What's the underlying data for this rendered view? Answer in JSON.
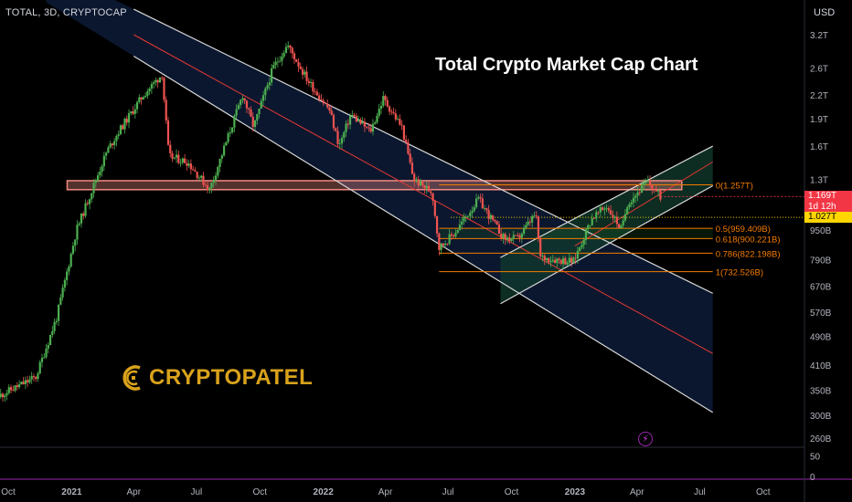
{
  "header": {
    "symbol": "TOTAL, 3D, CRYPTOCAP",
    "currency": "USD"
  },
  "title": "Total Crypto Market Cap Chart",
  "watermark": {
    "text": "CRYPTOPATEL",
    "icon": "cryptopatel-c-logo-icon"
  },
  "live_icon": "lightning-icon",
  "colors": {
    "background": "#000000",
    "bull": "#26a69a",
    "bull_green": "#4caf50",
    "bear": "#ef5350",
    "fib": "#f57c00",
    "channel_line": "#d8d8d8",
    "midline": "#e53935",
    "resistance_zone": "#f28b82",
    "accent_yellow": "#ffd600"
  },
  "price_tags": [
    {
      "label": "1.169T",
      "bg": "#f23645",
      "color": "#ffffff",
      "value": 1.169
    },
    {
      "label": "1d 12h",
      "bg": "#f23645",
      "color": "#ffffff",
      "value": 1.12
    },
    {
      "label": "1.027T",
      "bg": "#ffd600",
      "color": "#000000",
      "value": 1.027
    }
  ],
  "chart_data": {
    "type": "candlestick",
    "title": "Total Crypto Market Cap Chart",
    "symbol": "TOTAL",
    "interval": "3D",
    "y_scale": "log",
    "y_unit": "USD",
    "y_ticks": [
      "3.2T",
      "2.6T",
      "2.2T",
      "1.9T",
      "1.6T",
      "1.3T",
      "950B",
      "790B",
      "670B",
      "570B",
      "490B",
      "410B",
      "350B",
      "300B",
      "260B"
    ],
    "y_tick_values": [
      3.2,
      2.6,
      2.2,
      1.9,
      1.6,
      1.3,
      0.95,
      0.79,
      0.67,
      0.57,
      0.49,
      0.41,
      0.35,
      0.3,
      0.26
    ],
    "x_ticks": [
      "Oct",
      "2021",
      "Apr",
      "Jul",
      "Oct",
      "2022",
      "Apr",
      "Jul",
      "Oct",
      "2023",
      "Apr",
      "Jul",
      "Oct"
    ],
    "x_tick_dates": [
      "2020-10-01",
      "2021-01-01",
      "2021-04-01",
      "2021-07-01",
      "2021-10-01",
      "2022-01-01",
      "2022-04-01",
      "2022-07-01",
      "2022-10-01",
      "2023-01-01",
      "2023-04-01",
      "2023-07-01",
      "2023-10-01"
    ],
    "last_price": "1.169T",
    "countdown": "1d 12h",
    "marker_price": "1.027T",
    "volume_ticks": [
      "50",
      "0"
    ],
    "volume_tick_values": [
      50,
      0
    ],
    "path_points": [
      {
        "date": "2020-09-20",
        "value": 0.34
      },
      {
        "date": "2020-11-10",
        "value": 0.38
      },
      {
        "date": "2020-12-10",
        "value": 0.55
      },
      {
        "date": "2021-01-08",
        "value": 0.95
      },
      {
        "date": "2021-02-21",
        "value": 1.55
      },
      {
        "date": "2021-03-10",
        "value": 1.75
      },
      {
        "date": "2021-04-15",
        "value": 2.2
      },
      {
        "date": "2021-05-12",
        "value": 2.5
      },
      {
        "date": "2021-05-22",
        "value": 1.5
      },
      {
        "date": "2021-06-18",
        "value": 1.45
      },
      {
        "date": "2021-07-20",
        "value": 1.22
      },
      {
        "date": "2021-09-06",
        "value": 2.2
      },
      {
        "date": "2021-09-22",
        "value": 1.8
      },
      {
        "date": "2021-10-20",
        "value": 2.6
      },
      {
        "date": "2021-11-10",
        "value": 3.0
      },
      {
        "date": "2021-12-10",
        "value": 2.4
      },
      {
        "date": "2022-01-10",
        "value": 2.0
      },
      {
        "date": "2022-01-24",
        "value": 1.6
      },
      {
        "date": "2022-02-10",
        "value": 1.95
      },
      {
        "date": "2022-03-10",
        "value": 1.75
      },
      {
        "date": "2022-03-29",
        "value": 2.15
      },
      {
        "date": "2022-04-25",
        "value": 1.8
      },
      {
        "date": "2022-05-12",
        "value": 1.3
      },
      {
        "date": "2022-06-08",
        "value": 1.2
      },
      {
        "date": "2022-06-18",
        "value": 0.85
      },
      {
        "date": "2022-07-10",
        "value": 0.93
      },
      {
        "date": "2022-08-14",
        "value": 1.15
      },
      {
        "date": "2022-09-20",
        "value": 0.9
      },
      {
        "date": "2022-10-10",
        "value": 0.9
      },
      {
        "date": "2022-11-05",
        "value": 1.05
      },
      {
        "date": "2022-11-12",
        "value": 0.8
      },
      {
        "date": "2022-12-30",
        "value": 0.78
      },
      {
        "date": "2023-01-25",
        "value": 1.02
      },
      {
        "date": "2023-02-16",
        "value": 1.1
      },
      {
        "date": "2023-03-10",
        "value": 0.95
      },
      {
        "date": "2023-03-18",
        "value": 1.12
      },
      {
        "date": "2023-04-16",
        "value": 1.28
      },
      {
        "date": "2023-05-05",
        "value": 1.169
      }
    ],
    "resistance_zone": {
      "low": 1.22,
      "high": 1.29,
      "start": "2021-03-15",
      "end": "2023-06-05"
    },
    "fib_levels": [
      {
        "label": "0(1.257T)",
        "value": 1.257
      },
      {
        "label": "0.5(959.409B)",
        "value": 0.959
      },
      {
        "label": "0.618(900.221B)",
        "value": 0.9
      },
      {
        "label": "0.786(822.198B)",
        "value": 0.822
      },
      {
        "label": "1(732.526B)",
        "value": 0.7325
      }
    ],
    "fib_start": "2022-06-18",
    "fib_end": "2023-07-20",
    "descending_channel": {
      "upper": [
        {
          "date": "2021-04-01",
          "value": 3.75
        },
        {
          "date": "2023-07-20",
          "value": 0.64
        }
      ],
      "lower": [
        {
          "date": "2021-04-01",
          "value": 2.8
        },
        {
          "date": "2023-07-20",
          "value": 0.305
        }
      ],
      "mid": [
        {
          "date": "2021-04-01",
          "value": 3.2
        },
        {
          "date": "2023-07-20",
          "value": 0.44
        }
      ],
      "fill_start": "2021-05-01",
      "fill_end": "2023-07-20"
    },
    "ascending_channel": {
      "upper": [
        {
          "date": "2022-09-15",
          "value": 0.8
        },
        {
          "date": "2023-07-20",
          "value": 1.6
        }
      ],
      "lower": [
        {
          "date": "2022-09-15",
          "value": 0.6
        },
        {
          "date": "2023-07-20",
          "value": 1.25
        }
      ],
      "mid": [
        {
          "date": "2023-01-01",
          "value": 0.86
        },
        {
          "date": "2023-07-20",
          "value": 1.45
        }
      ]
    },
    "price_marker_line": {
      "value": 1.027,
      "start": "2022-07-05"
    }
  }
}
